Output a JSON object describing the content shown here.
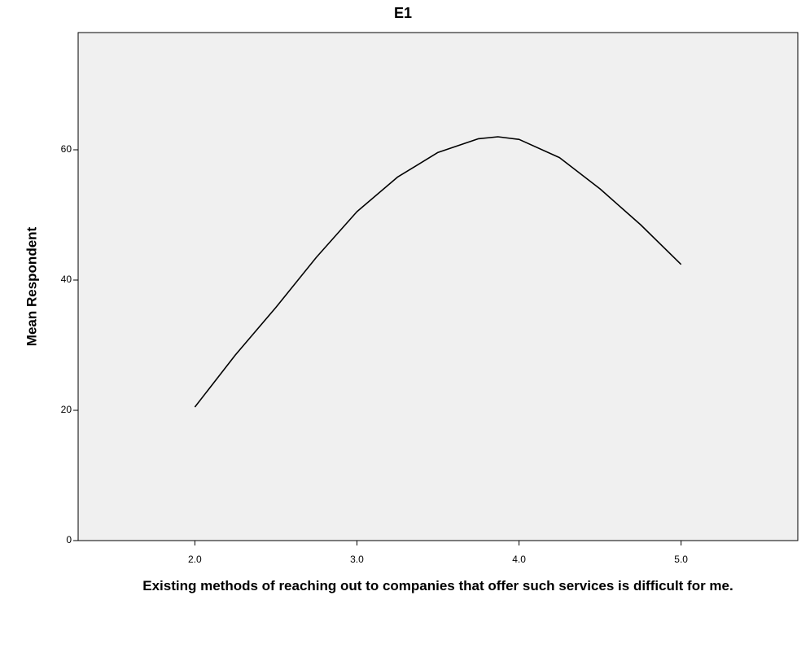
{
  "chart_data": {
    "type": "line",
    "title": "E1",
    "xlabel": "Existing methods of reaching out to companies that offer such services is difficult for me.",
    "ylabel": "Mean Respondent",
    "x": [
      2.0,
      2.25,
      2.5,
      2.75,
      3.0,
      3.25,
      3.5,
      3.75,
      3.87,
      4.0,
      4.25,
      4.5,
      4.75,
      5.0
    ],
    "series": [
      {
        "name": "E1",
        "color": "#000000",
        "values": [
          20.5,
          28.5,
          35.8,
          43.5,
          50.5,
          55.8,
          59.6,
          61.7,
          62.0,
          61.6,
          58.8,
          54.0,
          48.5,
          42.4
        ]
      }
    ],
    "xlim": [
      1.28,
      5.72
    ],
    "ylim": [
      0,
      78
    ],
    "xticks": [
      {
        "value": 2,
        "label": "2.0"
      },
      {
        "value": 3,
        "label": "3.0"
      },
      {
        "value": 4,
        "label": "4.0"
      },
      {
        "value": 5,
        "label": "5.0"
      }
    ],
    "yticks": [
      0,
      20,
      40,
      60
    ],
    "background": "#f0f0f0"
  }
}
